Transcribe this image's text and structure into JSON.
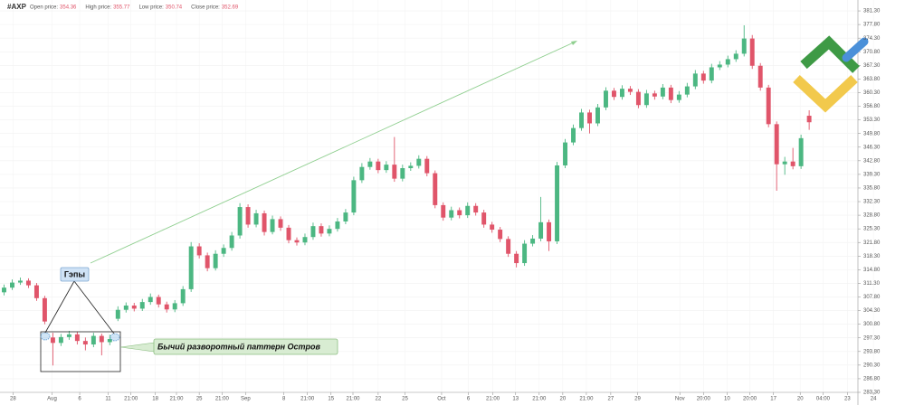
{
  "chart_data": {
    "type": "candlestick",
    "ticker": "#AXP",
    "header_labels": [
      "Open price:",
      "High price:",
      "Low price:",
      "Close price:"
    ],
    "annotations": [
      "Гэпы",
      "Бычий разворотный паттерн Остров"
    ],
    "grid": true,
    "xlim": [
      -0.5,
      108
    ],
    "ylim": [
      283.3,
      384.1
    ],
    "xticks": [
      {
        "value": 1.1,
        "label": "28"
      },
      {
        "value": 5.9,
        "label": "Aug"
      },
      {
        "value": 9.3,
        "label": "6"
      },
      {
        "value": 12.8,
        "label": "11"
      },
      {
        "value": 15.6,
        "label": "21:00"
      },
      {
        "value": 18.6,
        "label": "18"
      },
      {
        "value": 21.2,
        "label": "21:00"
      },
      {
        "value": 24,
        "label": "25"
      },
      {
        "value": 26.8,
        "label": "21:00"
      },
      {
        "value": 29.7,
        "label": "Sep"
      },
      {
        "value": 34.4,
        "label": "8"
      },
      {
        "value": 37.3,
        "label": "21:00"
      },
      {
        "value": 40.2,
        "label": "15"
      },
      {
        "value": 42.9,
        "label": "21:00"
      },
      {
        "value": 46,
        "label": "22"
      },
      {
        "value": 49.3,
        "label": "25"
      },
      {
        "value": 53.8,
        "label": "Oct"
      },
      {
        "value": 57.1,
        "label": "6"
      },
      {
        "value": 60.1,
        "label": "21:00"
      },
      {
        "value": 62.9,
        "label": "13"
      },
      {
        "value": 65.8,
        "label": "21:00"
      },
      {
        "value": 68.7,
        "label": "20"
      },
      {
        "value": 71.6,
        "label": "21:00"
      },
      {
        "value": 74.6,
        "label": "27"
      },
      {
        "value": 77.9,
        "label": "29"
      },
      {
        "value": 83.1,
        "label": "Nov"
      },
      {
        "value": 86,
        "label": "20:00"
      },
      {
        "value": 88.9,
        "label": "10"
      },
      {
        "value": 91.7,
        "label": "20:00"
      },
      {
        "value": 94.6,
        "label": "17"
      },
      {
        "value": 97.9,
        "label": "20"
      },
      {
        "value": 100.7,
        "label": "04:00"
      },
      {
        "value": 103.7,
        "label": "23"
      },
      {
        "value": 106.9,
        "label": "24"
      }
    ],
    "yticks": [
      {
        "value": 283.3,
        "label": "283.30"
      },
      {
        "value": 286.8,
        "label": "286.80"
      },
      {
        "value": 290.3,
        "label": "290.30"
      },
      {
        "value": 293.8,
        "label": "293.80"
      },
      {
        "value": 297.3,
        "label": "297.30"
      },
      {
        "value": 300.8,
        "label": "300.80"
      },
      {
        "value": 304.3,
        "label": "304.30"
      },
      {
        "value": 307.8,
        "label": "307.80"
      },
      {
        "value": 311.3,
        "label": "311.30"
      },
      {
        "value": 314.8,
        "label": "314.80"
      },
      {
        "value": 318.3,
        "label": "318.30"
      },
      {
        "value": 321.8,
        "label": "321.80"
      },
      {
        "value": 325.3,
        "label": "325.30"
      },
      {
        "value": 328.8,
        "label": "328.80"
      },
      {
        "value": 332.3,
        "label": "332.30"
      },
      {
        "value": 335.8,
        "label": "335.80"
      },
      {
        "value": 339.3,
        "label": "339.30"
      },
      {
        "value": 342.8,
        "label": "342.80"
      },
      {
        "value": 346.3,
        "label": "346.30"
      },
      {
        "value": 349.8,
        "label": "349.80"
      },
      {
        "value": 353.3,
        "label": "353.30"
      },
      {
        "value": 356.8,
        "label": "356.80"
      },
      {
        "value": 360.3,
        "label": "360.30"
      },
      {
        "value": 363.8,
        "label": "363.80"
      },
      {
        "value": 367.3,
        "label": "367.30"
      },
      {
        "value": 370.8,
        "label": "370.80"
      },
      {
        "value": 374.3,
        "label": "374.30"
      },
      {
        "value": 377.8,
        "label": "377.80"
      },
      {
        "value": 381.3,
        "label": "381.30"
      }
    ],
    "up_color": "#4cb782",
    "down_color": "#e0556a",
    "series": [
      {
        "name": "#AXP",
        "values": [
          [
            309.0,
            311.0,
            308.2,
            310.2
          ],
          [
            310.2,
            312.3,
            309.6,
            311.5
          ],
          [
            311.5,
            312.8,
            310.9,
            312.0
          ],
          [
            312.0,
            312.6,
            310.1,
            310.8
          ],
          [
            310.8,
            311.4,
            306.8,
            307.5
          ],
          [
            307.5,
            308.1,
            300.8,
            301.5
          ],
          [
            297.4,
            298.6,
            290.2,
            296.0
          ],
          [
            296.0,
            298.3,
            295.2,
            297.5
          ],
          [
            297.5,
            299.1,
            296.8,
            298.2
          ],
          [
            298.2,
            298.9,
            295.6,
            296.5
          ],
          [
            296.5,
            297.4,
            294.1,
            295.6
          ],
          [
            295.6,
            298.6,
            294.9,
            297.8
          ],
          [
            297.8,
            298.4,
            292.8,
            296.2
          ],
          [
            296.2,
            298.1,
            295.4,
            297.0
          ],
          [
            302.2,
            305.4,
            301.6,
            304.5
          ],
          [
            304.5,
            306.4,
            303.8,
            305.6
          ],
          [
            305.6,
            306.3,
            304.1,
            304.8
          ],
          [
            304.8,
            307.3,
            304.2,
            306.5
          ],
          [
            306.5,
            308.7,
            305.8,
            307.8
          ],
          [
            307.8,
            308.4,
            305.1,
            305.9
          ],
          [
            305.9,
            306.6,
            303.8,
            304.6
          ],
          [
            304.6,
            307.0,
            303.9,
            306.2
          ],
          [
            306.2,
            310.6,
            305.5,
            309.8
          ],
          [
            309.8,
            321.9,
            309.1,
            320.8
          ],
          [
            320.8,
            321.6,
            317.7,
            318.5
          ],
          [
            318.5,
            319.2,
            314.4,
            315.2
          ],
          [
            315.2,
            319.8,
            314.6,
            318.9
          ],
          [
            318.9,
            321.3,
            318.1,
            320.4
          ],
          [
            320.4,
            324.5,
            319.7,
            323.6
          ],
          [
            323.6,
            331.9,
            322.8,
            330.9
          ],
          [
            330.9,
            331.6,
            325.6,
            326.4
          ],
          [
            326.4,
            330.2,
            325.7,
            329.3
          ],
          [
            329.3,
            330.0,
            323.6,
            324.5
          ],
          [
            324.5,
            328.7,
            323.9,
            327.8
          ],
          [
            327.8,
            328.5,
            324.8,
            325.6
          ],
          [
            325.6,
            326.3,
            321.6,
            322.4
          ],
          [
            322.4,
            323.1,
            321.0,
            321.8
          ],
          [
            321.8,
            324.1,
            321.1,
            323.2
          ],
          [
            323.2,
            326.9,
            322.5,
            326.0
          ],
          [
            326.0,
            326.7,
            323.3,
            324.1
          ],
          [
            324.1,
            326.2,
            323.4,
            325.3
          ],
          [
            325.3,
            328.1,
            324.6,
            327.2
          ],
          [
            327.2,
            330.4,
            326.5,
            329.5
          ],
          [
            329.5,
            338.7,
            328.8,
            337.8
          ],
          [
            337.8,
            342.2,
            337.1,
            341.2
          ],
          [
            341.2,
            343.5,
            340.5,
            342.6
          ],
          [
            342.6,
            343.3,
            339.6,
            340.4
          ],
          [
            340.4,
            342.7,
            339.7,
            341.8
          ],
          [
            341.8,
            348.9,
            337.4,
            338.2
          ],
          [
            338.2,
            341.8,
            337.5,
            340.9
          ],
          [
            340.9,
            342.4,
            340.2,
            341.5
          ],
          [
            341.5,
            344.2,
            340.8,
            343.3
          ],
          [
            343.3,
            344.0,
            338.8,
            339.6
          ],
          [
            339.6,
            340.3,
            330.6,
            331.4
          ],
          [
            331.4,
            332.1,
            327.4,
            328.2
          ],
          [
            328.2,
            331.0,
            327.5,
            330.1
          ],
          [
            330.1,
            330.8,
            328.0,
            328.8
          ],
          [
            328.8,
            332.1,
            328.1,
            331.2
          ],
          [
            331.2,
            331.9,
            328.7,
            329.5
          ],
          [
            329.5,
            330.2,
            325.6,
            326.4
          ],
          [
            326.4,
            327.1,
            324.3,
            325.1
          ],
          [
            325.1,
            325.8,
            321.9,
            322.7
          ],
          [
            322.7,
            323.4,
            318.1,
            318.9
          ],
          [
            318.9,
            319.6,
            315.4,
            316.5
          ],
          [
            316.5,
            322.4,
            315.8,
            321.5
          ],
          [
            321.5,
            323.7,
            320.8,
            322.8
          ],
          [
            322.8,
            333.5,
            322.1,
            327.0
          ],
          [
            327.0,
            327.7,
            319.6,
            322.1
          ],
          [
            322.1,
            342.5,
            321.4,
            341.6
          ],
          [
            341.6,
            348.4,
            340.9,
            347.5
          ],
          [
            347.5,
            352.1,
            346.8,
            351.2
          ],
          [
            351.2,
            356.1,
            350.5,
            355.2
          ],
          [
            355.2,
            355.9,
            349.8,
            352.4
          ],
          [
            352.4,
            357.4,
            351.7,
            356.5
          ],
          [
            356.5,
            361.7,
            355.8,
            360.8
          ],
          [
            360.8,
            361.5,
            358.4,
            359.2
          ],
          [
            359.2,
            362.2,
            358.5,
            361.3
          ],
          [
            361.3,
            362.0,
            359.7,
            360.5
          ],
          [
            360.5,
            361.2,
            356.3,
            357.1
          ],
          [
            357.1,
            361.0,
            356.4,
            360.1
          ],
          [
            360.1,
            360.8,
            358.5,
            359.3
          ],
          [
            359.3,
            362.5,
            358.6,
            361.6
          ],
          [
            361.6,
            362.3,
            357.6,
            358.4
          ],
          [
            358.4,
            360.7,
            357.7,
            359.8
          ],
          [
            359.8,
            362.8,
            359.1,
            361.9
          ],
          [
            361.9,
            366.1,
            361.2,
            365.2
          ],
          [
            365.2,
            365.9,
            362.6,
            363.4
          ],
          [
            363.4,
            367.7,
            362.7,
            366.8
          ],
          [
            366.8,
            368.4,
            366.1,
            367.5
          ],
          [
            367.5,
            369.8,
            366.8,
            368.9
          ],
          [
            368.9,
            371.2,
            368.2,
            370.3
          ],
          [
            370.3,
            377.6,
            369.6,
            374.2
          ],
          [
            374.2,
            375.1,
            366.4,
            367.2
          ],
          [
            367.2,
            367.9,
            360.8,
            361.6
          ],
          [
            361.6,
            362.3,
            351.4,
            352.2
          ],
          [
            352.2,
            352.9,
            335.1,
            341.9
          ],
          [
            341.9,
            343.8,
            339.2,
            342.6
          ],
          [
            342.6,
            346.1,
            340.6,
            341.4
          ],
          [
            341.4,
            349.5,
            340.7,
            348.6
          ],
          [
            354.36,
            355.77,
            350.74,
            352.69
          ]
        ]
      }
    ]
  }
}
